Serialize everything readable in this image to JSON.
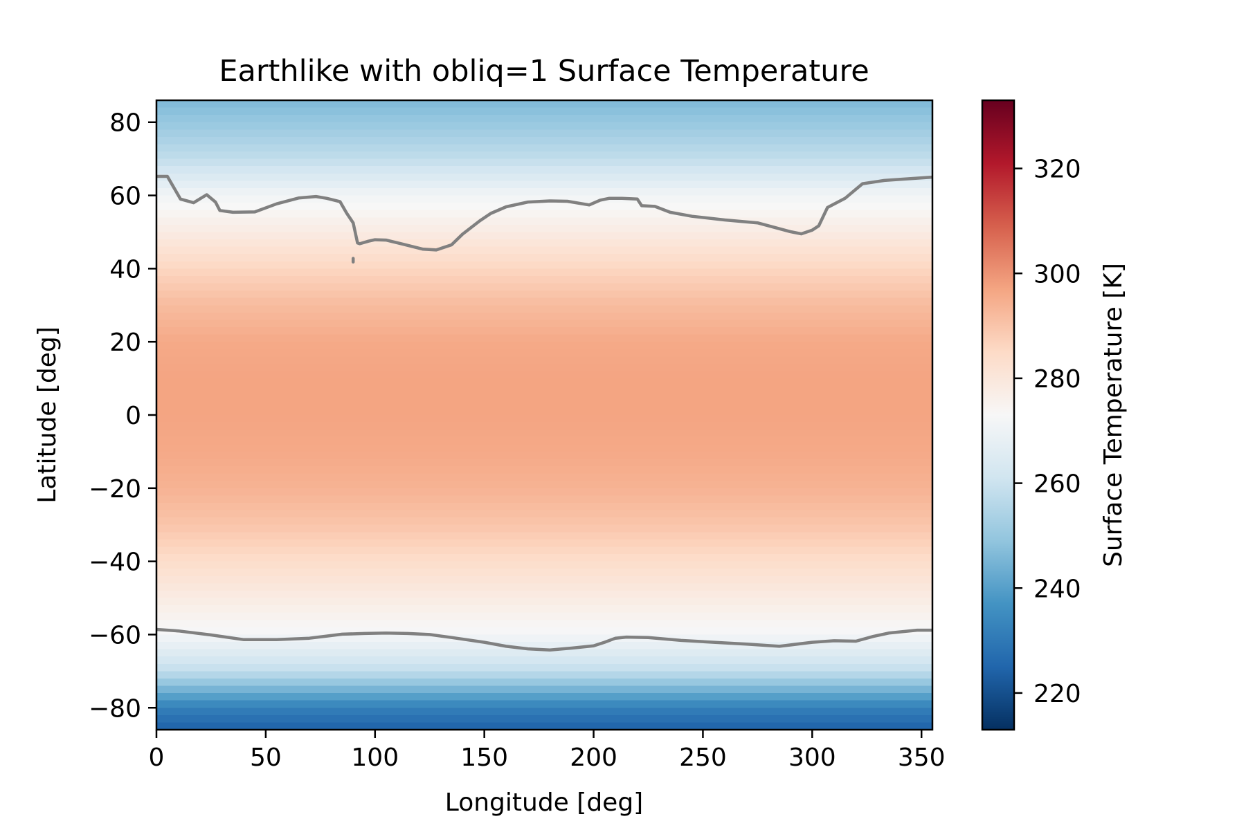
{
  "chart_data": {
    "type": "heatmap",
    "title": "Earthlike with obliq=1 Surface Temperature",
    "xlabel": "Longitude [deg]",
    "ylabel": "Latitude [deg]",
    "xlim": [
      0,
      355
    ],
    "ylim": [
      -86,
      86
    ],
    "x_ticks": [
      0,
      50,
      100,
      150,
      200,
      250,
      300,
      350
    ],
    "y_ticks": [
      80,
      60,
      40,
      20,
      0,
      -20,
      -40,
      -60,
      -80
    ],
    "x_tick_labels": [
      "0",
      "50",
      "100",
      "150",
      "200",
      "250",
      "300",
      "350"
    ],
    "y_tick_labels": [
      "80",
      "60",
      "40",
      "20",
      "0",
      "−20",
      "−40",
      "−60",
      "−80"
    ],
    "colorbar": {
      "label": "Surface Temperature [K]",
      "range": [
        213,
        333
      ],
      "ticks": [
        220,
        240,
        260,
        280,
        300,
        320
      ],
      "tick_labels": [
        "220",
        "240",
        "260",
        "280",
        "300",
        "320"
      ],
      "colormap": "RdBu_r",
      "colormap_stops": [
        "#053061",
        "#2166ac",
        "#4393c3",
        "#92c5de",
        "#d1e5f0",
        "#f7f7f7",
        "#fddbc7",
        "#f4a582",
        "#d6604d",
        "#b2182b",
        "#67001f"
      ]
    },
    "zonal_mean_temperature_K": {
      "lat": [
        86,
        80,
        70,
        60,
        50,
        40,
        30,
        20,
        10,
        0,
        -10,
        -20,
        -30,
        -40,
        -50,
        -60,
        -70,
        -80,
        -86
      ],
      "values": [
        246,
        250,
        258,
        271,
        278,
        286,
        292,
        296,
        297,
        297,
        296,
        294,
        290,
        284,
        278,
        272,
        258,
        232,
        224
      ]
    },
    "contour": {
      "level_K": 273,
      "color": "#808080",
      "northern_line": {
        "lon": [
          0,
          5,
          11,
          17,
          23,
          27,
          29,
          35,
          45,
          55,
          65,
          73,
          78,
          84,
          87,
          90,
          92,
          93,
          97,
          100,
          105,
          112,
          122,
          128,
          135,
          140,
          148,
          153,
          160,
          170,
          180,
          188,
          198,
          203,
          207,
          213,
          220,
          222,
          228,
          235,
          245,
          260,
          275,
          290,
          295,
          300,
          303,
          307,
          315,
          323,
          333,
          345,
          355
        ],
        "lat": [
          65.2,
          65.2,
          59,
          58,
          60.2,
          58.2,
          55.9,
          55.4,
          55.5,
          57.7,
          59.3,
          59.7,
          59.2,
          58.3,
          55.2,
          52.5,
          47,
          46.8,
          47.5,
          47.9,
          47.8,
          46.8,
          45.3,
          45.1,
          46.5,
          49.4,
          53.1,
          55.1,
          56.9,
          58.2,
          58.5,
          58.4,
          57.4,
          58.7,
          59.2,
          59.2,
          59,
          57.2,
          57,
          55.4,
          54.3,
          53.3,
          52.5,
          50.1,
          49.5,
          50.5,
          51.7,
          56.7,
          59.2,
          63.2,
          64.1,
          64.6,
          65
        ]
      },
      "southern_line": {
        "lon": [
          0,
          10,
          25,
          40,
          55,
          70,
          78,
          85,
          95,
          105,
          115,
          125,
          135,
          150,
          160,
          170,
          180,
          190,
          200,
          205,
          210,
          215,
          225,
          240,
          255,
          270,
          285,
          300,
          310,
          320,
          328,
          335,
          348,
          355
        ],
        "lat": [
          -58.6,
          -59,
          -60.1,
          -61.4,
          -61.4,
          -61,
          -60.4,
          -59.9,
          -59.7,
          -59.6,
          -59.7,
          -60,
          -60.8,
          -62.1,
          -63.2,
          -63.9,
          -64.2,
          -63.7,
          -63.1,
          -62.1,
          -61,
          -60.7,
          -60.8,
          -61.6,
          -62.1,
          -62.6,
          -63.2,
          -62.1,
          -61.7,
          -61.8,
          -60.5,
          -59.6,
          -58.8,
          -58.8
        ]
      },
      "island_point": {
        "lon": [
          90,
          90
        ],
        "lat": [
          42.8,
          41.8
        ]
      }
    }
  }
}
